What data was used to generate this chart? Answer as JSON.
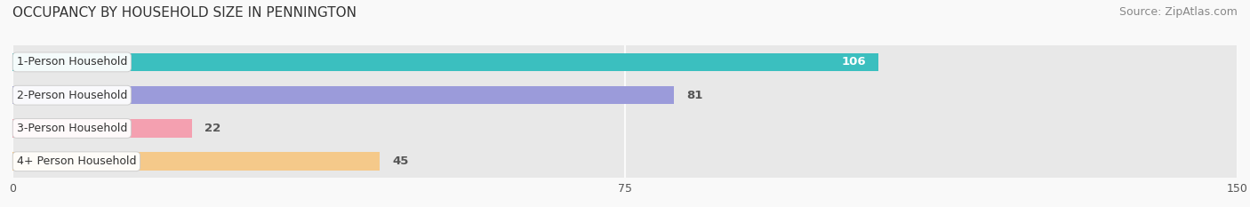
{
  "title": "OCCUPANCY BY HOUSEHOLD SIZE IN PENNINGTON",
  "source": "Source: ZipAtlas.com",
  "categories": [
    "1-Person Household",
    "2-Person Household",
    "3-Person Household",
    "4+ Person Household"
  ],
  "values": [
    106,
    81,
    22,
    45
  ],
  "bar_colors": [
    "#3bbfbf",
    "#9b9bda",
    "#f4a0b0",
    "#f5c98a"
  ],
  "value_inside": [
    true,
    false,
    false,
    false
  ],
  "xlim": [
    0,
    150
  ],
  "xticks": [
    0,
    75,
    150
  ],
  "fig_bg_color": "#f9f9f9",
  "bar_bg_color": "#e8e8e8",
  "title_fontsize": 11,
  "source_fontsize": 9,
  "label_fontsize": 9,
  "value_fontsize": 9.5,
  "tick_fontsize": 9,
  "bar_height": 0.55,
  "fig_width": 14.06,
  "fig_height": 2.33
}
